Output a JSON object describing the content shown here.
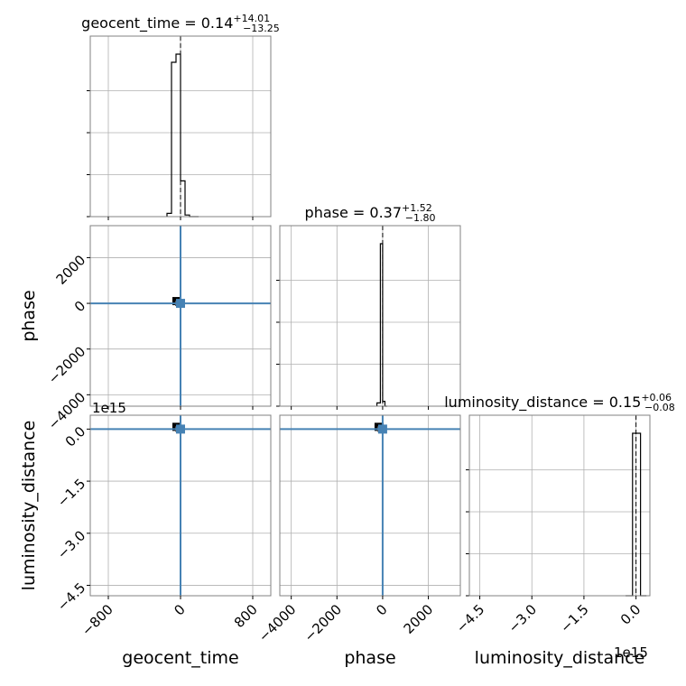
{
  "chart_data": {
    "type": "corner",
    "parameters": [
      "geocent_time",
      "phase",
      "luminosity_distance"
    ],
    "titles": [
      {
        "param": "geocent_time",
        "median": "0.14",
        "plus": "+14.01",
        "minus": "−13.25"
      },
      {
        "param": "phase",
        "median": "0.37",
        "plus": "+1.52",
        "minus": "−1.80"
      },
      {
        "param": "luminosity_distance",
        "median": "0.15",
        "plus": "+0.06",
        "minus": "−0.08"
      }
    ],
    "axes": {
      "geocent_time": {
        "range": [
          -1000,
          1000
        ],
        "ticks": [
          -800,
          0,
          800
        ],
        "tick_labels": [
          "−800",
          "0",
          "800"
        ]
      },
      "phase": {
        "range": [
          -4500,
          3400
        ],
        "ticks": [
          -4000,
          -2000,
          0,
          2000
        ],
        "tick_labels": [
          "−4000",
          "−2000",
          "0",
          "2000"
        ]
      },
      "luminosity_distance": {
        "range": [
          -4.8,
          0.4
        ],
        "ticks": [
          -4.5,
          -3.0,
          -1.5,
          0.0
        ],
        "tick_labels": [
          "−4.5",
          "−3.0",
          "−1.5",
          "0.0"
        ],
        "offset_text": "1e15"
      }
    },
    "histograms": {
      "geocent_time": {
        "edges": [
          -150,
          -100,
          -50,
          0,
          50,
          100,
          150,
          200
        ],
        "counts": [
          0.02,
          0.95,
          1.0,
          0.22,
          0.01,
          0,
          0
        ],
        "median": 0
      },
      "phase": {
        "edges": [
          -250,
          -100,
          0,
          100,
          200
        ],
        "counts": [
          0.02,
          1.0,
          0.03,
          0
        ],
        "median": 0
      },
      "luminosity_distance": {
        "edges": [
          -0.3,
          -0.1,
          0.0,
          0.13,
          0.3
        ],
        "counts": [
          0,
          1.0,
          1.0,
          0
        ],
        "median": 0.0
      }
    },
    "truth": {
      "geocent_time": 0,
      "phase": 0,
      "luminosity_distance": 0
    },
    "grid": true
  }
}
